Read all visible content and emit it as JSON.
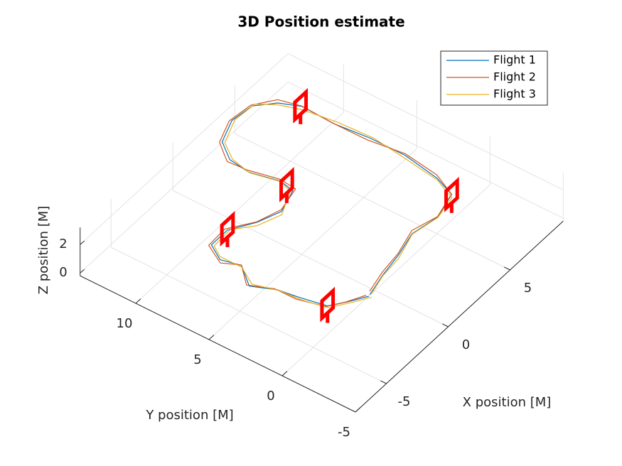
{
  "chart_data": {
    "type": "line3d",
    "title": "3D Position estimate",
    "xlabel": "X position [M]",
    "ylabel": "Y position [M]",
    "zlabel": "Z position [M]",
    "xlim": [
      -7.5,
      9.3
    ],
    "ylim": [
      -5,
      13.8
    ],
    "zlim": [
      -0.2,
      3.2
    ],
    "xticks": [
      -5,
      0,
      5
    ],
    "yticks": [
      -5,
      0,
      5,
      10
    ],
    "zticks": [
      0,
      2
    ],
    "grid": true,
    "legend": "northeast",
    "series": [
      {
        "name": "Flight 1",
        "color": "#0072bd",
        "x": [
          -1.8,
          -2.8,
          -3.6,
          -4.0,
          -4.1,
          -4.6,
          -3.8,
          -4.0,
          -3.4,
          -2.1,
          -0.9,
          0.5,
          2.0,
          2.2,
          1.9,
          2.0,
          2.8,
          4.3,
          5.7,
          6.6,
          7.0,
          7.0,
          7.2,
          7.2,
          6.8,
          6.2,
          4.6,
          3.0,
          1.3,
          -0.2,
          -1.6
        ],
        "y": [
          -1.1,
          -0.5,
          0.2,
          1.8,
          3.2,
          4.7,
          5.9,
          7.2,
          8.3,
          8.3,
          7.3,
          6.8,
          7.3,
          8.3,
          10.2,
          11.6,
          12.8,
          13.4,
          13.2,
          12.2,
          10.9,
          8.7,
          6.4,
          4.0,
          1.5,
          0.0,
          -0.4,
          0.0,
          -0.5,
          -0.7,
          -1.0
        ],
        "z": [
          1.4,
          1.5,
          1.5,
          1.6,
          1.5,
          1.4,
          1.6,
          1.5,
          1.5,
          1.5,
          1.6,
          1.5,
          1.5,
          1.5,
          1.4,
          1.5,
          1.5,
          1.5,
          1.5,
          1.5,
          1.6,
          1.5,
          1.5,
          1.5,
          1.5,
          1.6,
          1.5,
          1.4,
          1.5,
          1.4,
          1.3
        ]
      },
      {
        "name": "Flight 2",
        "color": "#d95319",
        "x": [
          -1.9,
          -2.9,
          -3.6,
          -4.1,
          -4.2,
          -4.7,
          -3.7,
          -4.1,
          -3.5,
          -2.2,
          -0.8,
          0.6,
          2.1,
          2.3,
          1.9,
          1.9,
          2.7,
          4.2,
          5.7,
          6.7,
          7.1,
          7.0,
          7.1,
          7.3,
          6.9,
          6.3,
          4.7,
          3.1,
          1.4,
          -0.1,
          -1.5
        ],
        "y": [
          -1.0,
          -0.4,
          0.3,
          1.9,
          3.3,
          4.8,
          6.0,
          7.1,
          8.4,
          8.4,
          7.4,
          6.9,
          7.2,
          8.4,
          10.3,
          11.7,
          12.9,
          13.5,
          13.3,
          12.3,
          11.0,
          8.8,
          6.5,
          4.1,
          1.6,
          0.1,
          -0.3,
          0.1,
          -0.4,
          -0.6,
          -0.9
        ],
        "z": [
          1.5,
          1.5,
          1.4,
          1.5,
          1.6,
          1.5,
          1.5,
          1.4,
          1.5,
          1.6,
          1.5,
          1.5,
          1.6,
          1.5,
          1.5,
          1.4,
          1.5,
          1.5,
          1.5,
          1.6,
          1.5,
          1.5,
          1.4,
          1.5,
          1.6,
          1.5,
          1.4,
          1.5,
          1.5,
          1.5,
          1.4
        ]
      },
      {
        "name": "Flight 3",
        "color": "#edb120",
        "x": [
          -1.7,
          -2.7,
          -3.7,
          -4.0,
          -4.0,
          -4.5,
          -3.9,
          -3.9,
          -3.3,
          -2.0,
          -1.0,
          0.4,
          1.9,
          2.1,
          1.8,
          2.1,
          2.9,
          4.4,
          5.8,
          6.5,
          6.9,
          7.1,
          7.3,
          7.1,
          6.7,
          6.1,
          4.5,
          2.9,
          1.2,
          -0.3,
          -1.6
        ],
        "y": [
          -1.2,
          -0.6,
          0.1,
          1.7,
          3.1,
          4.6,
          5.8,
          7.3,
          8.2,
          8.2,
          7.2,
          6.7,
          7.4,
          8.2,
          10.1,
          11.5,
          12.7,
          13.3,
          13.1,
          12.1,
          10.8,
          8.6,
          6.3,
          3.9,
          1.4,
          -0.1,
          -0.5,
          -0.1,
          -0.6,
          -0.8,
          -1.1
        ],
        "z": [
          1.3,
          1.4,
          1.5,
          1.5,
          1.4,
          1.5,
          1.6,
          1.6,
          1.4,
          1.5,
          1.5,
          1.4,
          1.5,
          1.6,
          1.5,
          1.5,
          1.4,
          1.5,
          1.6,
          1.5,
          1.5,
          1.6,
          1.5,
          1.4,
          1.5,
          1.5,
          1.6,
          1.5,
          1.4,
          1.5,
          1.4
        ]
      }
    ],
    "gates": {
      "color": "#ff0000",
      "x": [
        -3.6,
        -2.1,
        2.1,
        7.0,
        6.2
      ],
      "y": [
        0.2,
        8.3,
        7.8,
        11.0,
        0.0
      ],
      "z": [
        1.6,
        1.6,
        1.6,
        1.6,
        1.6
      ]
    }
  }
}
